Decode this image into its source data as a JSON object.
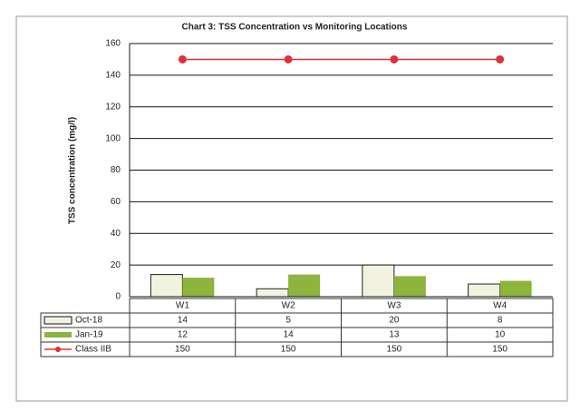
{
  "chart_data": {
    "type": "bar",
    "title": "Chart 3: TSS Concentration vs Monitoring Locations",
    "y_label": "TSS concentration (mg/l)",
    "categories": [
      "W1",
      "W2",
      "W3",
      "W4"
    ],
    "series": [
      {
        "name": "Oct-18",
        "color": "#f1f3df",
        "values": [
          14,
          5,
          20,
          8
        ]
      },
      {
        "name": "Jan-19",
        "color": "#8db43c",
        "values": [
          12,
          14,
          13,
          10
        ]
      },
      {
        "name": "Class IIB",
        "color": "#e0303a",
        "type": "line",
        "values": [
          150,
          150,
          150,
          150
        ]
      }
    ],
    "ylim": [
      0,
      160
    ],
    "yticks": [
      0,
      20,
      40,
      60,
      80,
      100,
      120,
      140,
      160
    ],
    "grid": true,
    "data_table": true
  }
}
